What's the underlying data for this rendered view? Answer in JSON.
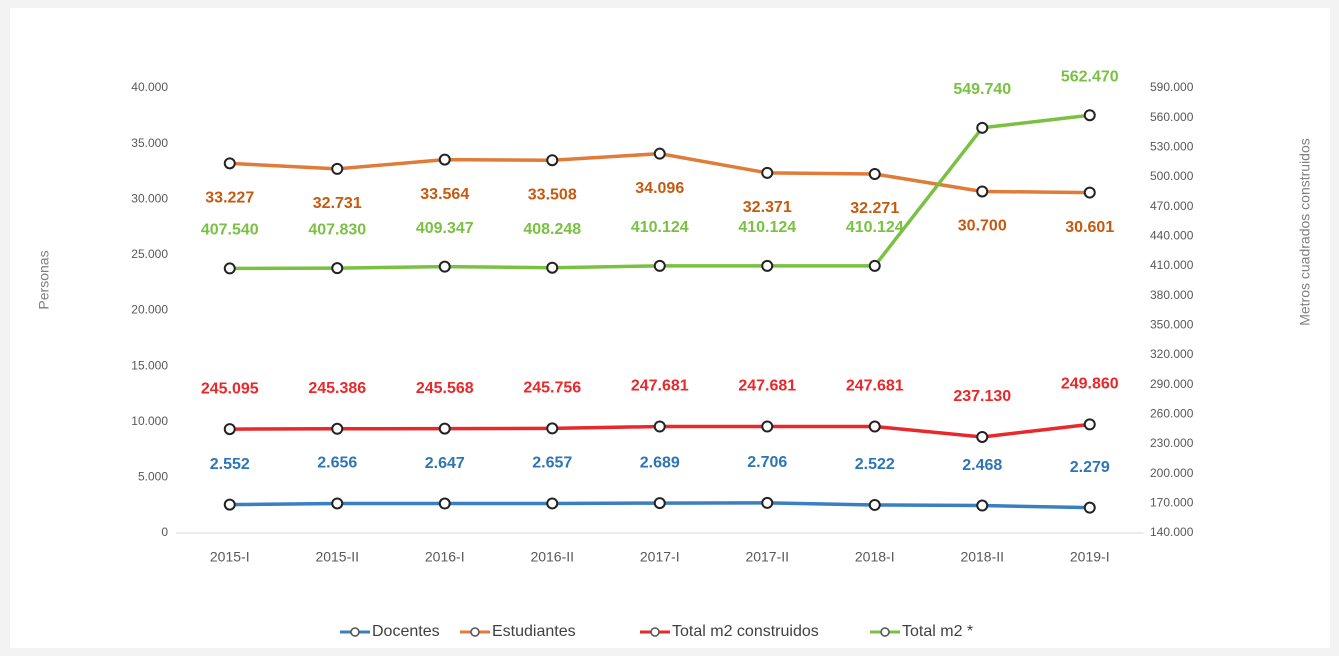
{
  "chart_data": {
    "type": "line",
    "y_label": "Personas",
    "y2_label": "Metros cuadrados construidos",
    "categories": [
      "2015-I",
      "2015-II",
      "2016-I",
      "2016-II",
      "2017-I",
      "2017-II",
      "2018-I",
      "2018-II",
      "2019-I"
    ],
    "ylim": [
      0,
      40000
    ],
    "yticks": [
      0,
      {
        "value": 5000,
        "label": "5.000"
      },
      {
        "value": 10000,
        "label": "10.000"
      },
      {
        "value": 15000,
        "label": "15.000"
      },
      {
        "value": 20000,
        "label": "20.000"
      },
      {
        "value": 25000,
        "label": "25.000"
      },
      {
        "value": 30000,
        "label": "30.000"
      },
      {
        "value": 35000,
        "label": "35.000"
      },
      {
        "value": 40000,
        "label": "40.000"
      }
    ],
    "y2lim": [
      140000,
      590000
    ],
    "y2ticks": [
      {
        "value": 140000,
        "label": "140.000"
      },
      {
        "value": 170000,
        "label": "170.000"
      },
      {
        "value": 200000,
        "label": "200.000"
      },
      {
        "value": 230000,
        "label": "230.000"
      },
      {
        "value": 260000,
        "label": "260.000"
      },
      {
        "value": 290000,
        "label": "290.000"
      },
      {
        "value": 320000,
        "label": "320.000"
      },
      {
        "value": 350000,
        "label": "350.000"
      },
      {
        "value": 380000,
        "label": "380.000"
      },
      {
        "value": 410000,
        "label": "410.000"
      },
      {
        "value": 440000,
        "label": "440.000"
      },
      {
        "value": 470000,
        "label": "470.000"
      },
      {
        "value": 500000,
        "label": "500.000"
      },
      {
        "value": 530000,
        "label": "530.000"
      },
      {
        "value": 560000,
        "label": "560.000"
      },
      {
        "value": 590000,
        "label": "590.000"
      }
    ],
    "series": [
      {
        "name": "Docentes",
        "color": "#3a7fc1",
        "values": [
          2552,
          2656,
          2647,
          2657,
          2689,
          2706,
          2522,
          2468,
          2279
        ],
        "value_labels": [
          "2.552",
          "2.656",
          "2.647",
          "2.657",
          "2.689",
          "2.706",
          "2.522",
          "2.468",
          "2.279"
        ]
      },
      {
        "name": "Estudiantes",
        "color": "#e07b39",
        "values": [
          33227,
          32731,
          33564,
          33508,
          34096,
          32371,
          32271,
          30700,
          30601
        ],
        "value_labels": [
          "33.227",
          "32.731",
          "33.564",
          "33.508",
          "34.096",
          "32.371",
          "32.271",
          "30.700",
          "30.601"
        ]
      },
      {
        "name": "Total m2 construidos",
        "color": "#e8282b",
        "axis": "y2",
        "values": [
          245095,
          245386,
          245568,
          245756,
          247681,
          247681,
          247681,
          237130,
          249860
        ],
        "value_labels": [
          "245.095",
          "245.386",
          "245.568",
          "245.756",
          "247.681",
          "247.681",
          "247.681",
          "237.130",
          "249.860"
        ]
      },
      {
        "name": "Total m2 *",
        "color": "#7ac143",
        "axis": "y2",
        "values": [
          407540,
          407830,
          409347,
          408248,
          410124,
          410124,
          410124,
          549740,
          562470
        ],
        "value_labels": [
          "407.540",
          "407.830",
          "409.347",
          "408.248",
          "410.124",
          "410.124",
          "410.124",
          "549.740",
          "562.470"
        ]
      }
    ]
  }
}
